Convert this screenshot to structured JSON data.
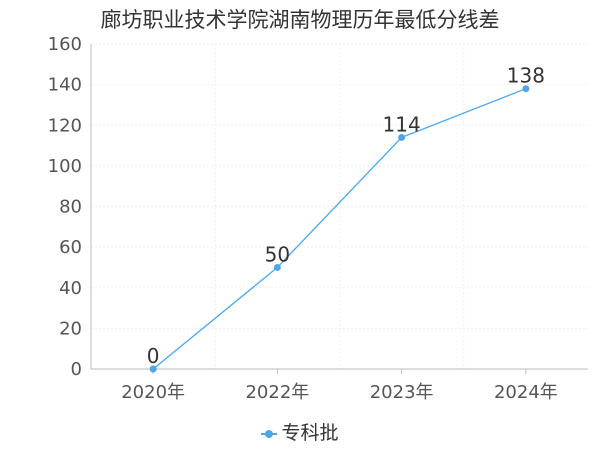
{
  "chart_data": {
    "type": "line",
    "title": "廊坊职业技术学院湖南物理历年最低分线差",
    "categories": [
      "2020年",
      "2022年",
      "2023年",
      "2024年"
    ],
    "series": [
      {
        "name": "专科批",
        "values": [
          0,
          50,
          114,
          138
        ],
        "color": "#4da6ea"
      }
    ],
    "ylim": [
      0,
      160
    ],
    "yticks": [
      0,
      20,
      40,
      60,
      80,
      100,
      120,
      140,
      160
    ],
    "grid": true,
    "legend_position": "bottom-center",
    "data_labels": true
  }
}
